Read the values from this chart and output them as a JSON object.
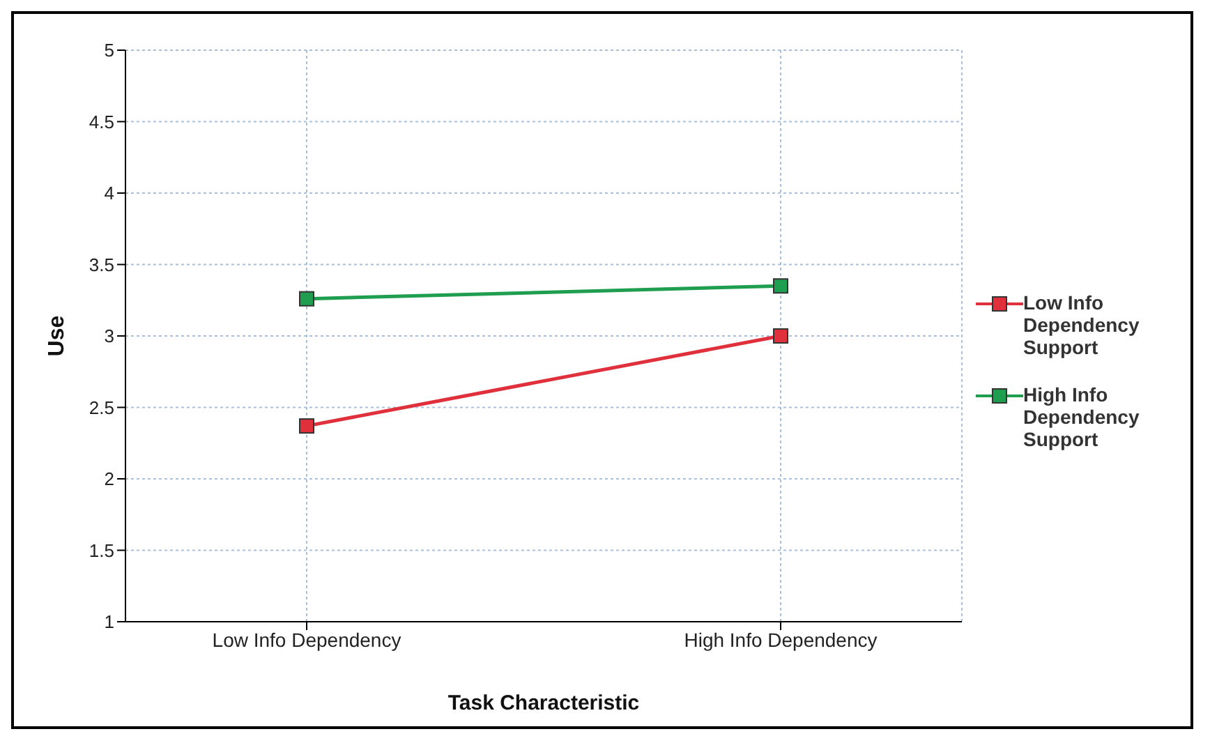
{
  "chart_data": {
    "type": "line",
    "xlabel": "Task Characteristic",
    "ylabel": "Use",
    "categories": [
      "Low Info Dependency",
      "High Info Dependency"
    ],
    "series": [
      {
        "name": "Low Info Dependency Support",
        "color": "#e0303c",
        "values": [
          2.37,
          3.0
        ]
      },
      {
        "name": "High Info Dependency Support",
        "color": "#1f9e50",
        "values": [
          3.26,
          3.35
        ]
      }
    ],
    "ylim": [
      1,
      5
    ],
    "yticks": [
      1,
      1.5,
      2,
      2.5,
      3,
      3.5,
      4,
      4.5,
      5
    ],
    "grid": true,
    "legend": "right",
    "marker": "square",
    "line_style": "solid"
  }
}
